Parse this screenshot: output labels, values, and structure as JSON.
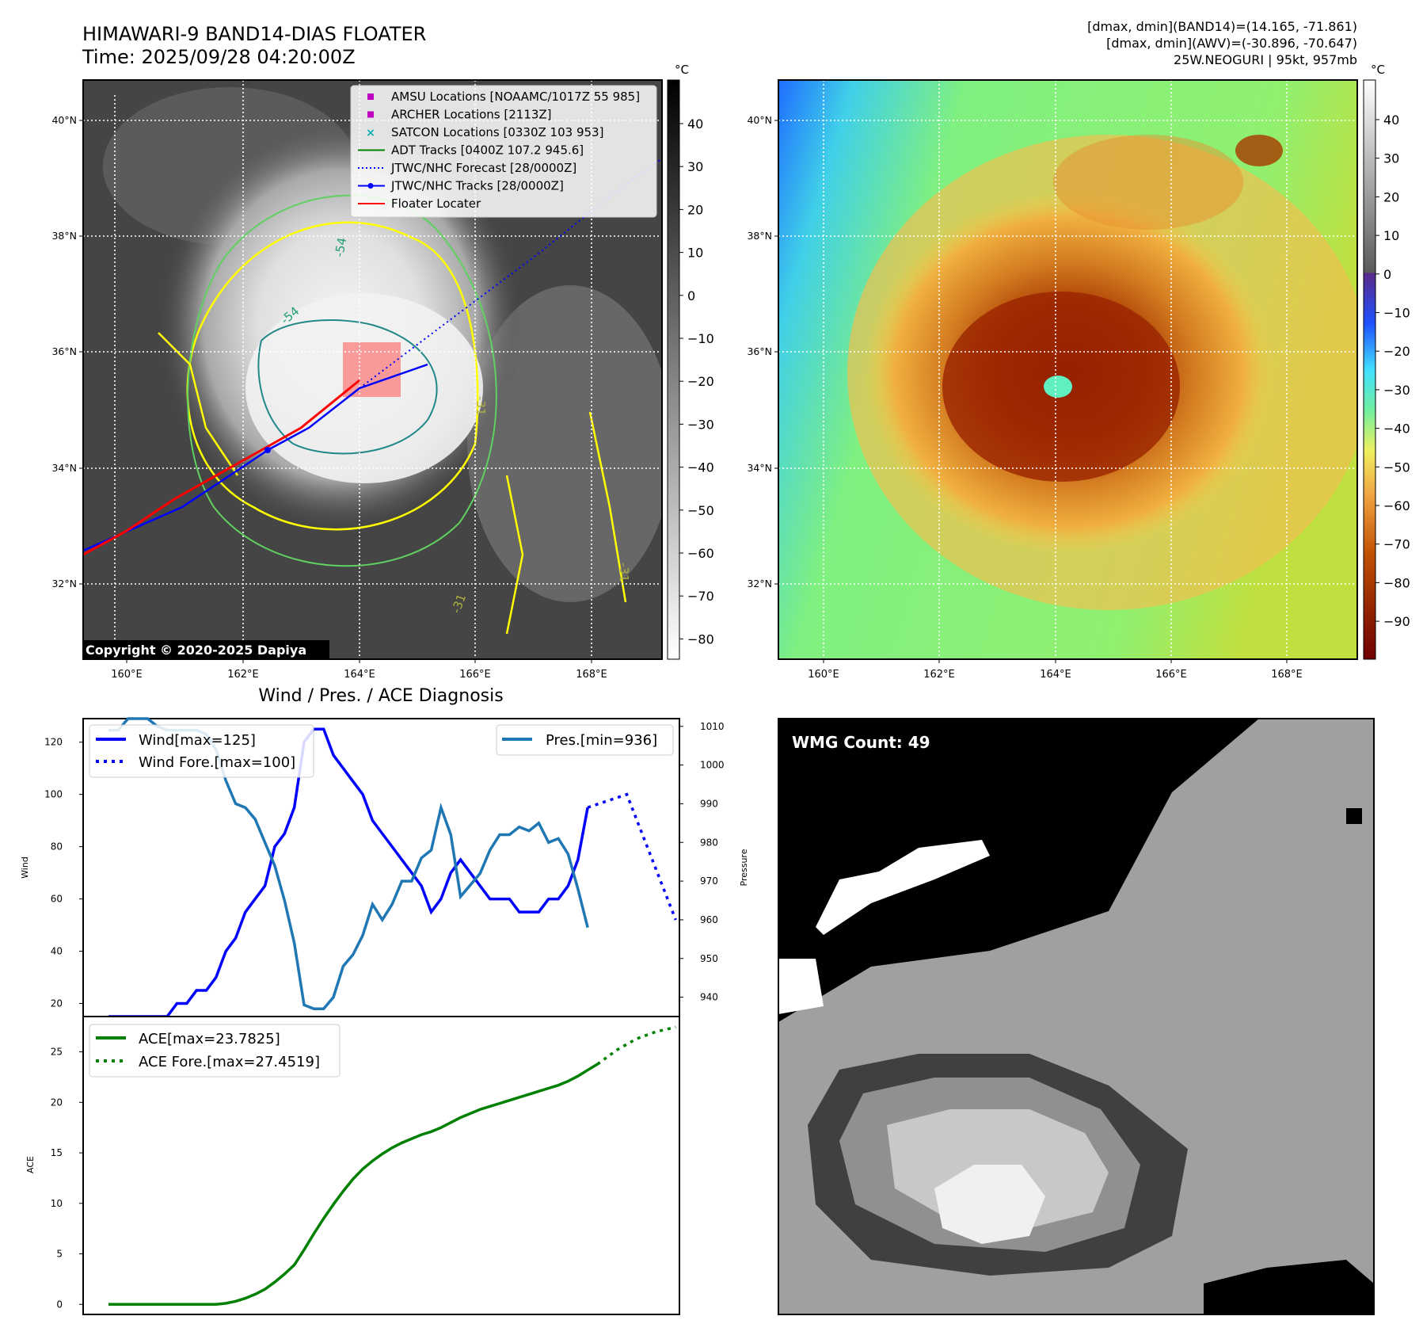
{
  "header": {
    "title": "HIMAWARI-9 BAND14-DIAS FLOATER",
    "time": "Time: 2025/09/28 04:20:00Z",
    "stats_line1": "[dmax, dmin](BAND14)=(14.165, -71.861)",
    "stats_line2": "[dmax, dmin](AWV)=(-30.896, -70.647)",
    "storm_line": "25W.NEOGURI | 95kt, 957mb"
  },
  "maps": {
    "lat_labels": [
      "40°N",
      "38°N",
      "36°N",
      "34°N",
      "32°N"
    ],
    "lon_labels": [
      "160°E",
      "162°E",
      "164°E",
      "166°E",
      "168°E"
    ],
    "copyright": "Copyright © 2020-2025 Dapiya",
    "contour_labels": [
      "-54",
      "-54",
      "-31",
      "-31",
      "-31"
    ],
    "legend": [
      {
        "label": "AMSU Locations [NOAAMC/1017Z 55 985]",
        "color": "#c000c0",
        "marker": "square"
      },
      {
        "label": "ARCHER Locations [2113Z]",
        "color": "#c000c0",
        "marker": "square"
      },
      {
        "label": "SATCON Locations [0330Z 103 953]",
        "color": "#00b0b0",
        "marker": "x"
      },
      {
        "label": "ADT Tracks [0400Z 107.2 945.6]",
        "color": "#008000",
        "marker": "line"
      },
      {
        "label": "JTWC/NHC Forecast [28/0000Z]",
        "color": "#0000ff",
        "marker": "dotted"
      },
      {
        "label": "JTWC/NHC Tracks [28/0000Z]",
        "color": "#0000ff",
        "marker": "line-dot"
      },
      {
        "label": "Floater Locater",
        "color": "#ff0000",
        "marker": "line"
      }
    ],
    "ir_colorbar": {
      "unit": "°C",
      "ticks": [
        "40",
        "30",
        "20",
        "10",
        "0",
        "−10",
        "−20",
        "−30",
        "−40",
        "−50",
        "−60",
        "−70",
        "−80"
      ]
    },
    "awv_colorbar": {
      "unit": "°C",
      "ticks": [
        "40",
        "30",
        "20",
        "10",
        "0",
        "−10",
        "−20",
        "−30",
        "−40",
        "−50",
        "−60",
        "−70",
        "−80",
        "−90"
      ]
    }
  },
  "chart_data": [
    {
      "type": "line",
      "title": "Wind / Pres. / ACE Diagnosis",
      "ylabel": "Wind",
      "y2label": "Pressure",
      "ylim": [
        15,
        129
      ],
      "y2lim": [
        935,
        1012
      ],
      "yticks": [
        20,
        40,
        60,
        80,
        100,
        120
      ],
      "y2ticks": [
        940,
        950,
        960,
        970,
        980,
        990,
        1000,
        1010
      ],
      "series": [
        {
          "name": "Wind[max=125]",
          "axis": "left",
          "style": "solid",
          "color": "#0000ff",
          "values": [
            15,
            15,
            15,
            15,
            15,
            15,
            15,
            20,
            20,
            25,
            25,
            30,
            40,
            45,
            55,
            60,
            65,
            80,
            85,
            95,
            120,
            125,
            125,
            115,
            110,
            105,
            100,
            90,
            85,
            80,
            75,
            70,
            65,
            55,
            60,
            70,
            75,
            70,
            65,
            60,
            60,
            60,
            55,
            55,
            55,
            60,
            60,
            65,
            75,
            95
          ]
        },
        {
          "name": "Wind Fore.[max=100]",
          "axis": "left",
          "style": "dotted",
          "color": "#0000ff",
          "x": [
            49,
            53,
            58
          ],
          "values": [
            95,
            100,
            52
          ]
        },
        {
          "name": "Pres.[min=936]",
          "axis": "right",
          "style": "solid",
          "color": "#1f77b4",
          "values": [
            1009,
            1009,
            1012,
            1012,
            1012,
            1010,
            1009,
            1009,
            1009,
            1009,
            1008,
            1004,
            996,
            990,
            989,
            986,
            980,
            974,
            965,
            954,
            938,
            937,
            937,
            940,
            948,
            951,
            956,
            964,
            960,
            964,
            970,
            970,
            976,
            978,
            989,
            982,
            966,
            969,
            972,
            978,
            982,
            982,
            984,
            983,
            985,
            980,
            981,
            977,
            968,
            958
          ]
        }
      ]
    },
    {
      "type": "line",
      "ylabel": "ACE",
      "ylim": [
        -1,
        28.5
      ],
      "yticks": [
        0,
        5,
        10,
        15,
        20,
        25
      ],
      "series": [
        {
          "name": "ACE[max=23.7825]",
          "style": "solid",
          "color": "#008000",
          "values": [
            0,
            0,
            0,
            0,
            0,
            0,
            0,
            0,
            0,
            0,
            0,
            0,
            0.1,
            0.3,
            0.6,
            1.0,
            1.5,
            2.2,
            3.0,
            3.9,
            5.4,
            7.0,
            8.5,
            9.9,
            11.2,
            12.4,
            13.4,
            14.2,
            14.9,
            15.5,
            16.0,
            16.4,
            16.8,
            17.1,
            17.5,
            18.0,
            18.5,
            18.9,
            19.3,
            19.6,
            19.9,
            20.2,
            20.5,
            20.8,
            21.1,
            21.4,
            21.7,
            22.1,
            22.6,
            23.2,
            23.78
          ]
        },
        {
          "name": "ACE Fore.[max=27.4519]",
          "style": "dotted",
          "color": "#008000",
          "x": [
            50,
            52,
            54,
            56,
            58
          ],
          "values": [
            23.78,
            25.2,
            26.3,
            27.0,
            27.45
          ]
        }
      ]
    }
  ],
  "wmg": {
    "label": "WMG Count: 49"
  }
}
